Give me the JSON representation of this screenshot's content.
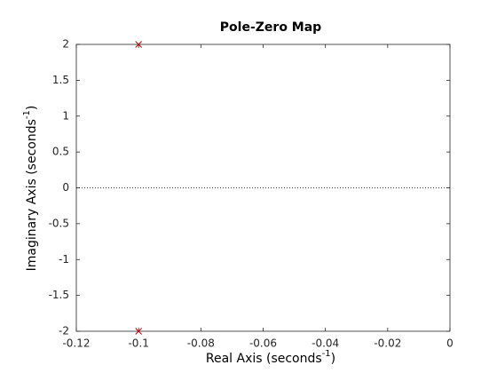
{
  "chart_data": {
    "type": "scatter",
    "title": "Pole-Zero Map",
    "xlabel": {
      "text": "Real Axis (seconds",
      "sup": "-1",
      "tail": ")"
    },
    "ylabel": {
      "text": "Imaginary Axis (seconds",
      "sup": "-1",
      "tail": ")"
    },
    "x": [
      -0.1,
      -0.1
    ],
    "y": [
      2,
      -2
    ],
    "color": "#cc0000",
    "marker": "x",
    "xlim": [
      -0.12,
      0
    ],
    "xticks": [
      -0.12,
      -0.1,
      -0.08,
      -0.06,
      -0.04,
      -0.02,
      0
    ],
    "ylim": [
      -2,
      2
    ],
    "yticks": [
      -2,
      -1.5,
      -1,
      -0.5,
      0,
      0.5,
      1,
      1.5,
      2
    ],
    "grid": false
  }
}
